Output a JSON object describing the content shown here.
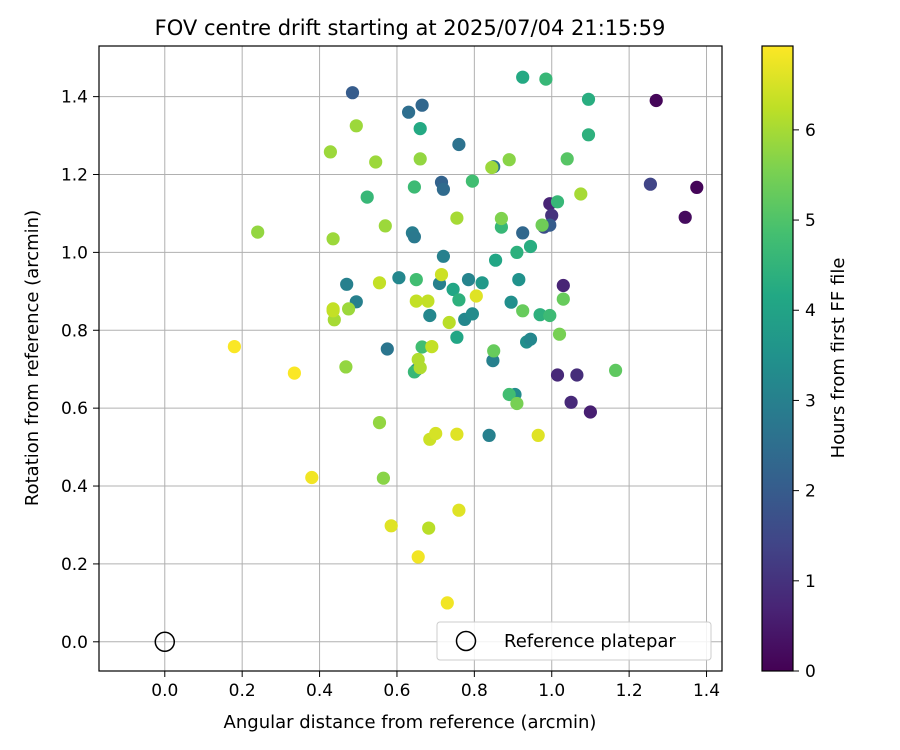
{
  "chart_data": {
    "type": "scatter",
    "title": "FOV centre drift starting at 2025/07/04 21:15:59",
    "xlabel": "Angular distance from reference (arcmin)",
    "ylabel": "Rotation from reference (arcmin)",
    "xlim": [
      -0.17,
      1.44
    ],
    "ylim": [
      -0.075,
      1.53
    ],
    "xticks": [
      0.0,
      0.2,
      0.4,
      0.6,
      0.8,
      1.0,
      1.2,
      1.4
    ],
    "xtick_labels": [
      "0.0",
      "0.2",
      "0.4",
      "0.6",
      "0.8",
      "1.0",
      "1.2",
      "1.4"
    ],
    "yticks": [
      0.0,
      0.2,
      0.4,
      0.6,
      0.8,
      1.0,
      1.2,
      1.4
    ],
    "ytick_labels": [
      "0.0",
      "0.2",
      "0.4",
      "0.6",
      "0.8",
      "1.0",
      "1.2",
      "1.4"
    ],
    "grid": true,
    "colormap": "viridis",
    "colorbar": {
      "label": "Hours from first FF file",
      "range": [
        0,
        6.93
      ],
      "ticks": [
        0,
        1,
        2,
        3,
        4,
        5,
        6
      ],
      "tick_labels": [
        "0",
        "1",
        "2",
        "3",
        "4",
        "5",
        "6"
      ]
    },
    "reference": {
      "x": 0.0,
      "y": 0.0,
      "marker": "hollow-circle",
      "label": "Reference platepar"
    },
    "legend": {
      "placement": "lower-right",
      "entries": [
        "Reference platepar"
      ]
    },
    "points": [
      {
        "x": 1.27,
        "y": 1.39,
        "t": 0.1
      },
      {
        "x": 1.375,
        "y": 1.167,
        "t": 0.1
      },
      {
        "x": 1.345,
        "y": 1.09,
        "t": 0.2
      },
      {
        "x": 1.1,
        "y": 0.59,
        "t": 0.6
      },
      {
        "x": 1.05,
        "y": 0.615,
        "t": 0.8
      },
      {
        "x": 1.065,
        "y": 0.685,
        "t": 0.9
      },
      {
        "x": 1.015,
        "y": 0.685,
        "t": 0.8
      },
      {
        "x": 1.03,
        "y": 0.915,
        "t": 0.7
      },
      {
        "x": 1.255,
        "y": 1.175,
        "t": 1.4
      },
      {
        "x": 0.995,
        "y": 1.125,
        "t": 0.7
      },
      {
        "x": 1.0,
        "y": 1.095,
        "t": 1.0
      },
      {
        "x": 0.98,
        "y": 1.065,
        "t": 1.6
      },
      {
        "x": 0.995,
        "y": 1.07,
        "t": 2.0
      },
      {
        "x": 0.485,
        "y": 1.41,
        "t": 2.0
      },
      {
        "x": 0.665,
        "y": 1.378,
        "t": 2.3
      },
      {
        "x": 0.63,
        "y": 1.36,
        "t": 2.5
      },
      {
        "x": 0.76,
        "y": 1.277,
        "t": 2.6
      },
      {
        "x": 0.715,
        "y": 1.18,
        "t": 2.2
      },
      {
        "x": 0.72,
        "y": 1.162,
        "t": 2.4
      },
      {
        "x": 0.85,
        "y": 1.22,
        "t": 2.7
      },
      {
        "x": 0.925,
        "y": 1.05,
        "t": 2.3
      },
      {
        "x": 0.64,
        "y": 1.05,
        "t": 2.9
      },
      {
        "x": 0.645,
        "y": 1.04,
        "t": 2.8
      },
      {
        "x": 0.72,
        "y": 0.99,
        "t": 3.0
      },
      {
        "x": 0.47,
        "y": 0.918,
        "t": 3.0
      },
      {
        "x": 0.495,
        "y": 0.873,
        "t": 3.0
      },
      {
        "x": 0.605,
        "y": 0.935,
        "t": 3.2
      },
      {
        "x": 0.71,
        "y": 0.92,
        "t": 3.0
      },
      {
        "x": 0.785,
        "y": 0.93,
        "t": 3.1
      },
      {
        "x": 0.685,
        "y": 0.838,
        "t": 3.2
      },
      {
        "x": 0.775,
        "y": 0.828,
        "t": 3.2
      },
      {
        "x": 0.795,
        "y": 0.842,
        "t": 3.3
      },
      {
        "x": 0.575,
        "y": 0.752,
        "t": 2.7
      },
      {
        "x": 0.65,
        "y": 0.698,
        "t": 3.0
      },
      {
        "x": 0.848,
        "y": 0.722,
        "t": 3.0
      },
      {
        "x": 0.895,
        "y": 0.872,
        "t": 3.4
      },
      {
        "x": 0.915,
        "y": 0.93,
        "t": 3.5
      },
      {
        "x": 0.82,
        "y": 0.922,
        "t": 3.7
      },
      {
        "x": 0.935,
        "y": 0.77,
        "t": 3.4
      },
      {
        "x": 0.945,
        "y": 0.777,
        "t": 3.2
      },
      {
        "x": 0.905,
        "y": 0.635,
        "t": 3.3
      },
      {
        "x": 0.838,
        "y": 0.53,
        "t": 3.0
      },
      {
        "x": 0.745,
        "y": 0.905,
        "t": 4.1
      },
      {
        "x": 0.76,
        "y": 0.878,
        "t": 4.4
      },
      {
        "x": 0.755,
        "y": 0.782,
        "t": 4.1
      },
      {
        "x": 0.855,
        "y": 0.98,
        "t": 4.1
      },
      {
        "x": 0.91,
        "y": 1.0,
        "t": 4.4
      },
      {
        "x": 0.945,
        "y": 1.015,
        "t": 4.3
      },
      {
        "x": 0.87,
        "y": 1.065,
        "t": 4.6
      },
      {
        "x": 0.925,
        "y": 1.45,
        "t": 4.2
      },
      {
        "x": 0.985,
        "y": 1.445,
        "t": 4.6
      },
      {
        "x": 1.095,
        "y": 1.393,
        "t": 4.3
      },
      {
        "x": 1.095,
        "y": 1.302,
        "t": 4.4
      },
      {
        "x": 0.66,
        "y": 1.318,
        "t": 4.2
      },
      {
        "x": 0.523,
        "y": 1.142,
        "t": 4.6
      },
      {
        "x": 0.645,
        "y": 1.168,
        "t": 4.7
      },
      {
        "x": 0.795,
        "y": 1.183,
        "t": 4.8
      },
      {
        "x": 1.015,
        "y": 1.13,
        "t": 4.6
      },
      {
        "x": 0.97,
        "y": 0.84,
        "t": 4.4
      },
      {
        "x": 0.995,
        "y": 0.838,
        "t": 4.7
      },
      {
        "x": 0.65,
        "y": 0.93,
        "t": 4.8
      },
      {
        "x": 0.665,
        "y": 0.757,
        "t": 4.8
      },
      {
        "x": 0.645,
        "y": 0.693,
        "t": 4.6
      },
      {
        "x": 0.89,
        "y": 0.635,
        "t": 4.8
      },
      {
        "x": 1.04,
        "y": 1.24,
        "t": 5.1
      },
      {
        "x": 1.165,
        "y": 0.697,
        "t": 5.2
      },
      {
        "x": 1.03,
        "y": 0.88,
        "t": 5.3
      },
      {
        "x": 1.02,
        "y": 0.79,
        "t": 5.5
      },
      {
        "x": 0.925,
        "y": 0.85,
        "t": 5.3
      },
      {
        "x": 0.85,
        "y": 0.747,
        "t": 5.3
      },
      {
        "x": 0.91,
        "y": 0.612,
        "t": 5.5
      },
      {
        "x": 0.975,
        "y": 1.07,
        "t": 5.4
      },
      {
        "x": 0.87,
        "y": 1.087,
        "t": 5.6
      },
      {
        "x": 0.89,
        "y": 1.238,
        "t": 5.7
      },
      {
        "x": 0.845,
        "y": 1.218,
        "t": 5.9
      },
      {
        "x": 0.66,
        "y": 1.24,
        "t": 5.8
      },
      {
        "x": 0.545,
        "y": 1.232,
        "t": 5.9
      },
      {
        "x": 0.495,
        "y": 1.325,
        "t": 5.9
      },
      {
        "x": 0.428,
        "y": 1.258,
        "t": 5.9
      },
      {
        "x": 0.24,
        "y": 1.052,
        "t": 5.8
      },
      {
        "x": 0.435,
        "y": 1.035,
        "t": 5.9
      },
      {
        "x": 0.57,
        "y": 1.068,
        "t": 5.9
      },
      {
        "x": 0.755,
        "y": 1.088,
        "t": 6.0
      },
      {
        "x": 1.075,
        "y": 1.15,
        "t": 6.0
      },
      {
        "x": 0.475,
        "y": 0.855,
        "t": 5.9
      },
      {
        "x": 0.438,
        "y": 0.827,
        "t": 6.0
      },
      {
        "x": 0.468,
        "y": 0.706,
        "t": 5.8
      },
      {
        "x": 0.555,
        "y": 0.563,
        "t": 5.8
      },
      {
        "x": 0.565,
        "y": 0.42,
        "t": 5.7
      },
      {
        "x": 0.655,
        "y": 0.725,
        "t": 6.1
      },
      {
        "x": 0.66,
        "y": 0.704,
        "t": 6.1
      },
      {
        "x": 0.435,
        "y": 0.855,
        "t": 6.3
      },
      {
        "x": 0.435,
        "y": 0.85,
        "t": 6.3
      },
      {
        "x": 0.555,
        "y": 0.922,
        "t": 6.3
      },
      {
        "x": 0.65,
        "y": 0.875,
        "t": 6.3
      },
      {
        "x": 0.68,
        "y": 0.875,
        "t": 6.3
      },
      {
        "x": 0.735,
        "y": 0.82,
        "t": 6.2
      },
      {
        "x": 0.69,
        "y": 0.758,
        "t": 6.3
      },
      {
        "x": 0.715,
        "y": 0.943,
        "t": 6.4
      },
      {
        "x": 0.805,
        "y": 0.888,
        "t": 6.6
      },
      {
        "x": 0.685,
        "y": 0.52,
        "t": 6.4
      },
      {
        "x": 0.7,
        "y": 0.535,
        "t": 6.5
      },
      {
        "x": 0.755,
        "y": 0.533,
        "t": 6.6
      },
      {
        "x": 0.965,
        "y": 0.53,
        "t": 6.6
      },
      {
        "x": 0.682,
        "y": 0.292,
        "t": 6.2
      },
      {
        "x": 0.76,
        "y": 0.338,
        "t": 6.6
      },
      {
        "x": 0.585,
        "y": 0.298,
        "t": 6.6
      },
      {
        "x": 0.655,
        "y": 0.218,
        "t": 6.8
      },
      {
        "x": 0.73,
        "y": 0.1,
        "t": 6.8
      },
      {
        "x": 0.38,
        "y": 0.422,
        "t": 6.8
      },
      {
        "x": 0.335,
        "y": 0.69,
        "t": 6.9
      },
      {
        "x": 0.18,
        "y": 0.758,
        "t": 6.9
      }
    ]
  }
}
